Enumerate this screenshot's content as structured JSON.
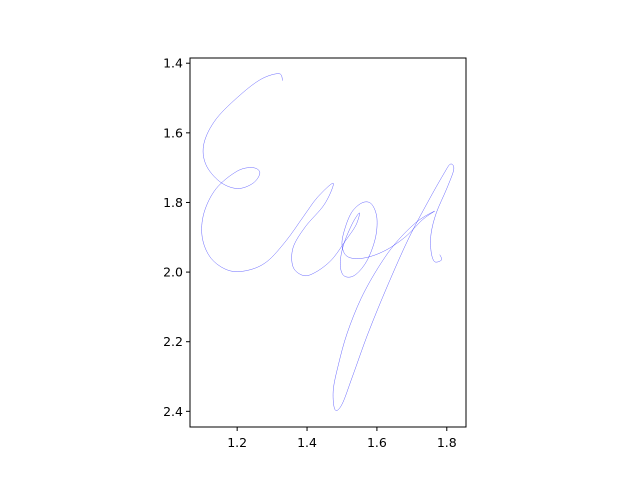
{
  "chart_data": {
    "type": "line",
    "title": "",
    "xlabel": "",
    "ylabel": "",
    "xlim": [
      1.065,
      1.855
    ],
    "ylim": [
      2.445,
      1.385
    ],
    "y_inverted": true,
    "grid": false,
    "legend": "none",
    "x_ticks": [
      "1.2",
      "1.4",
      "1.6",
      "1.8"
    ],
    "x_tick_values": [
      1.2,
      1.4,
      1.6,
      1.8
    ],
    "y_ticks": [
      "1.4",
      "1.6",
      "1.8",
      "2.0",
      "2.2",
      "2.4"
    ],
    "y_tick_values": [
      1.4,
      1.6,
      1.8,
      2.0,
      2.2,
      2.4
    ],
    "series": [
      {
        "color": "#0000ff",
        "points": [
          [
            1.33,
            1.45
          ],
          [
            1.32,
            1.43
          ],
          [
            1.27,
            1.445
          ],
          [
            1.21,
            1.49
          ],
          [
            1.14,
            1.56
          ],
          [
            1.105,
            1.63
          ],
          [
            1.11,
            1.69
          ],
          [
            1.15,
            1.74
          ],
          [
            1.2,
            1.76
          ],
          [
            1.245,
            1.745
          ],
          [
            1.265,
            1.715
          ],
          [
            1.245,
            1.7
          ],
          [
            1.2,
            1.71
          ],
          [
            1.14,
            1.76
          ],
          [
            1.105,
            1.83
          ],
          [
            1.1,
            1.9
          ],
          [
            1.125,
            1.96
          ],
          [
            1.175,
            1.995
          ],
          [
            1.23,
            1.995
          ],
          [
            1.285,
            1.97
          ],
          [
            1.34,
            1.91
          ],
          [
            1.39,
            1.84
          ],
          [
            1.43,
            1.785
          ],
          [
            1.475,
            1.745
          ],
          [
            1.45,
            1.805
          ],
          [
            1.395,
            1.87
          ],
          [
            1.36,
            1.93
          ],
          [
            1.36,
            1.985
          ],
          [
            1.39,
            2.01
          ],
          [
            1.425,
            2.0
          ],
          [
            1.47,
            1.965
          ],
          [
            1.51,
            1.91
          ],
          [
            1.54,
            1.865
          ],
          [
            1.55,
            1.83
          ],
          [
            1.53,
            1.86
          ],
          [
            1.505,
            1.92
          ],
          [
            1.495,
            1.975
          ],
          [
            1.505,
            2.01
          ],
          [
            1.535,
            2.01
          ],
          [
            1.57,
            1.97
          ],
          [
            1.595,
            1.905
          ],
          [
            1.6,
            1.845
          ],
          [
            1.585,
            1.805
          ],
          [
            1.56,
            1.8
          ],
          [
            1.53,
            1.825
          ],
          [
            1.51,
            1.87
          ],
          [
            1.5,
            1.92
          ],
          [
            1.515,
            1.955
          ],
          [
            1.56,
            1.96
          ],
          [
            1.62,
            1.94
          ],
          [
            1.68,
            1.9
          ],
          [
            1.73,
            1.85
          ],
          [
            1.765,
            1.825
          ],
          [
            1.715,
            1.855
          ],
          [
            1.655,
            1.915
          ],
          [
            1.605,
            1.985
          ],
          [
            1.555,
            2.075
          ],
          [
            1.515,
            2.175
          ],
          [
            1.49,
            2.265
          ],
          [
            1.475,
            2.34
          ],
          [
            1.48,
            2.395
          ],
          [
            1.5,
            2.38
          ],
          [
            1.53,
            2.3
          ],
          [
            1.575,
            2.175
          ],
          [
            1.63,
            2.04
          ],
          [
            1.69,
            1.905
          ],
          [
            1.745,
            1.8
          ],
          [
            1.79,
            1.72
          ],
          [
            1.81,
            1.69
          ],
          [
            1.82,
            1.705
          ],
          [
            1.8,
            1.76
          ],
          [
            1.77,
            1.83
          ],
          [
            1.755,
            1.89
          ],
          [
            1.755,
            1.94
          ],
          [
            1.765,
            1.97
          ],
          [
            1.785,
            1.965
          ],
          [
            1.78,
            1.95
          ]
        ]
      }
    ]
  }
}
